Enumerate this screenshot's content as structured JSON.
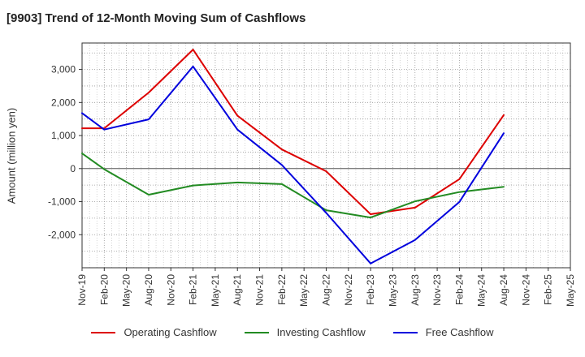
{
  "chart_data": {
    "type": "line",
    "title": "[9903]  Trend of 12-Month Moving Sum of Cashflows",
    "xlabel": "",
    "ylabel": "Amount (million yen)",
    "categories": [
      "Nov-19",
      "Feb-20",
      "May-20",
      "Aug-20",
      "Nov-20",
      "Feb-21",
      "May-21",
      "Aug-21",
      "Nov-21",
      "Feb-22",
      "May-22",
      "Aug-22",
      "Nov-22",
      "Feb-23",
      "May-23",
      "Aug-23",
      "Nov-23",
      "Feb-24",
      "May-24",
      "Aug-24",
      "Nov-24",
      "Feb-25",
      "May-25"
    ],
    "yticks": [
      3000,
      2000,
      1000,
      0,
      -1000,
      -2000
    ],
    "ytick_labels": [
      "3,000",
      "2,000",
      "1,000",
      "0",
      "-1,000",
      "-2,000"
    ],
    "ylim": [
      -3000,
      3800
    ],
    "grid": true,
    "legend_position": "bottom",
    "series": [
      {
        "name": "Operating Cashflow",
        "color": "#dd0000",
        "values": [
          1220,
          1220,
          null,
          2300,
          null,
          3600,
          null,
          1600,
          null,
          580,
          null,
          -80,
          null,
          -1380,
          null,
          -1180,
          null,
          -320,
          null,
          1620,
          null,
          null,
          null
        ]
      },
      {
        "name": "Investing Cashflow",
        "color": "#228b22",
        "values": [
          460,
          -20,
          null,
          -790,
          null,
          -510,
          null,
          -420,
          null,
          -470,
          null,
          -1260,
          null,
          -1480,
          null,
          -990,
          null,
          -710,
          null,
          -550,
          null,
          null,
          null
        ]
      },
      {
        "name": "Free Cashflow",
        "color": "#0000dd",
        "values": [
          1680,
          1180,
          null,
          1490,
          null,
          3090,
          null,
          1180,
          null,
          110,
          null,
          -1340,
          null,
          -2870,
          null,
          -2160,
          null,
          -1010,
          null,
          1070,
          null,
          null,
          null
        ]
      }
    ]
  }
}
